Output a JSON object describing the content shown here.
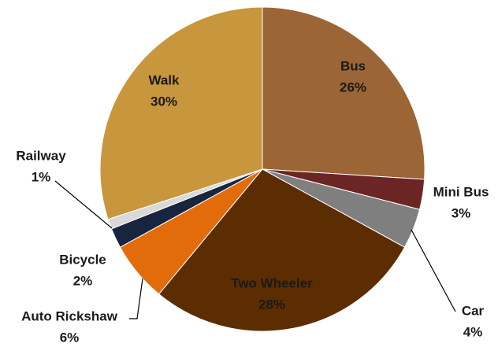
{
  "chart_data": {
    "type": "pie",
    "categories": [
      "Bus",
      "Mini Bus",
      "Car",
      "Two Wheeler",
      "Auto Rickshaw",
      "Bicycle",
      "Railway",
      "Walk"
    ],
    "values": [
      26,
      3,
      4,
      28,
      6,
      2,
      1,
      30
    ],
    "value_labels": [
      "26%",
      "3%",
      "4%",
      "28%",
      "6%",
      "2%",
      "1%",
      "30%"
    ],
    "colors": [
      "#9b6535",
      "#6b2525",
      "#7f7f7f",
      "#5c2d00",
      "#e36c0a",
      "#17253f",
      "#d9d9d9",
      "#c8963c"
    ]
  }
}
